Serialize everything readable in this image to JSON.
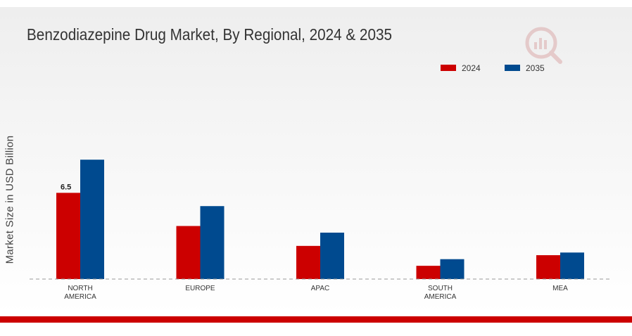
{
  "chart_data": {
    "type": "bar",
    "title": "Benzodiazepine Drug Market, By Regional, 2024 & 2035",
    "xlabel": "",
    "ylabel": "Market Size in USD Billion",
    "categories": [
      [
        "NORTH",
        "AMERICA"
      ],
      [
        "EUROPE"
      ],
      [
        "APAC"
      ],
      [
        "SOUTH",
        "AMERICA"
      ],
      [
        "MEA"
      ]
    ],
    "series": [
      {
        "name": "2024",
        "color": "#cc0000",
        "values": [
          6.5,
          4.0,
          2.5,
          1.0,
          1.8
        ]
      },
      {
        "name": "2035",
        "color": "#004a8f",
        "values": [
          9.0,
          5.5,
          3.5,
          1.5,
          2.0
        ]
      }
    ],
    "data_labels": [
      {
        "series": 0,
        "index": 0,
        "text": "6.5"
      }
    ],
    "ylim": [
      0,
      11.5
    ],
    "grid": false,
    "legend_position": "top-right"
  }
}
